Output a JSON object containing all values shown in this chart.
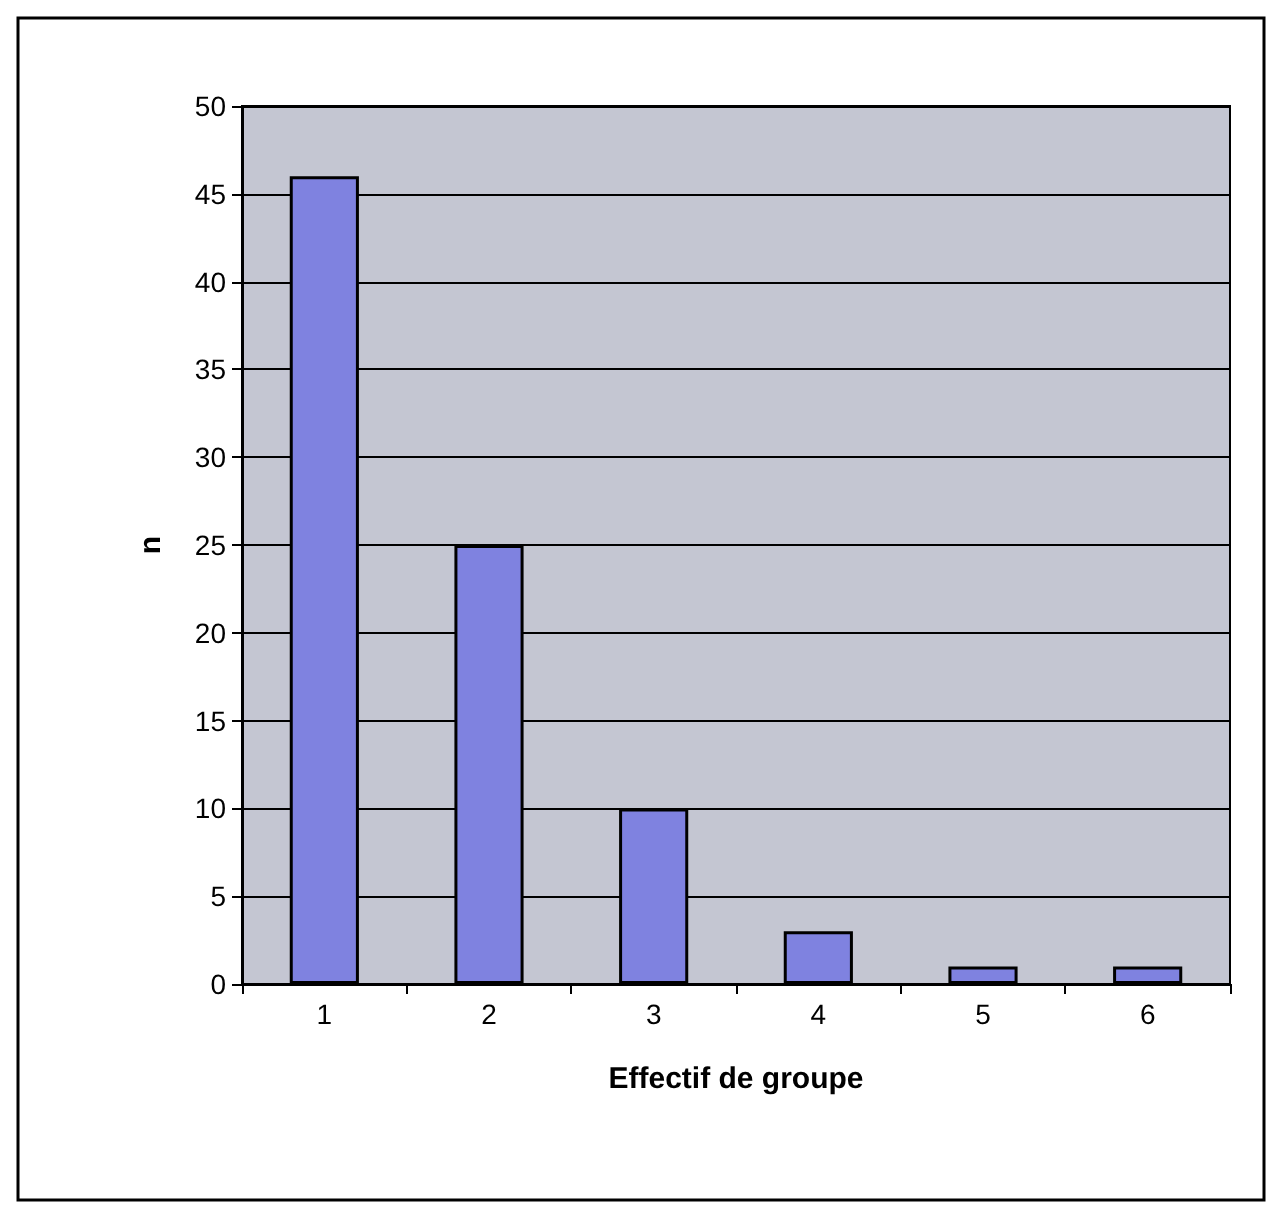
{
  "chart_data": {
    "type": "bar",
    "xlabel": "Effectif de groupe",
    "ylabel": "n",
    "categories": [
      "1",
      "2",
      "3",
      "4",
      "5",
      "6"
    ],
    "values": [
      46,
      25,
      10,
      3,
      1,
      1
    ],
    "color": "#7f82e0",
    "ylim": [
      0,
      50
    ],
    "yticks": [
      0,
      5,
      10,
      15,
      20,
      25,
      30,
      35,
      40,
      45,
      50
    ],
    "grid": "y"
  }
}
